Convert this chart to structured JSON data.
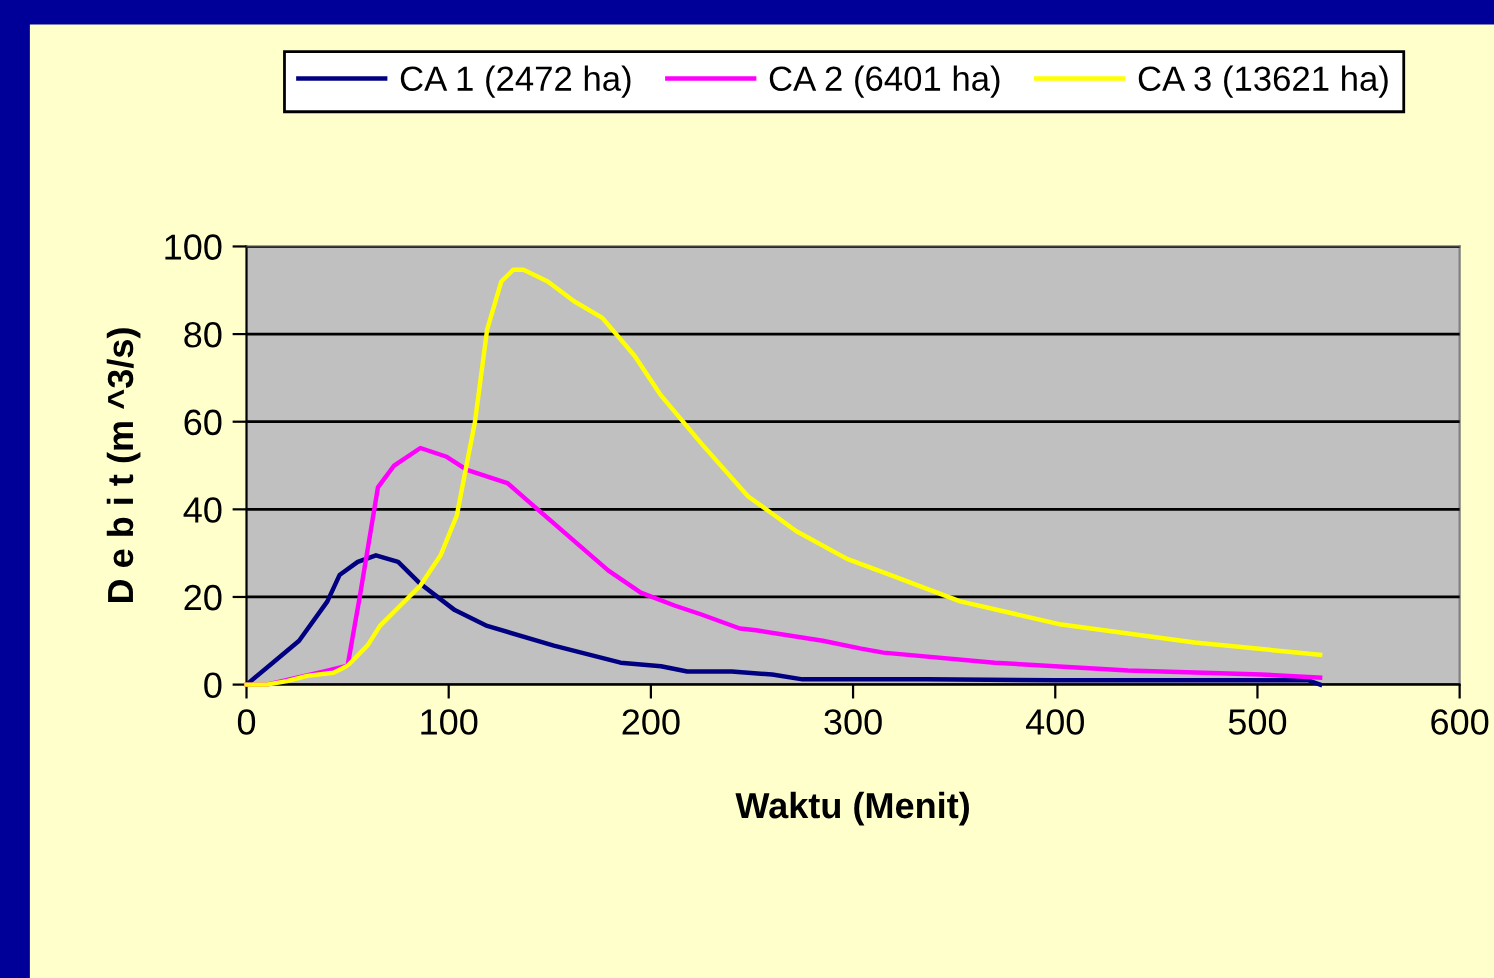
{
  "chart_data": {
    "type": "line",
    "xlabel": "Waktu (Menit)",
    "ylabel": "D e b i t (m ^3/s)",
    "xlim": [
      0,
      600
    ],
    "ylim": [
      0,
      100
    ],
    "xticks": [
      0,
      100,
      200,
      300,
      400,
      500,
      600
    ],
    "yticks": [
      0,
      20,
      40,
      60,
      80,
      100
    ],
    "grid": "y",
    "legend": "top",
    "marker": "none",
    "line_style": "solid",
    "series": [
      {
        "name": "CA 1 (2472 ha)",
        "color": "#000080",
        "x": [
          0,
          13,
          26,
          40,
          46,
          55,
          64,
          75,
          86,
          103,
          119,
          152,
          185,
          205,
          218,
          240,
          260,
          275,
          336,
          400,
          500,
          525,
          531
        ],
        "values": [
          0,
          5,
          10,
          19,
          25,
          28,
          29.5,
          28,
          23,
          17,
          13.4,
          8.9,
          5,
          4.2,
          3,
          3,
          2.3,
          1.2,
          1.2,
          1,
          1,
          1,
          0
        ]
      },
      {
        "name": "CA 2 (6401 ha)",
        "color": "#ff00ff",
        "x": [
          0,
          10,
          40,
          50,
          56,
          65,
          73,
          86,
          99,
          109,
          129,
          139,
          159,
          179,
          195,
          212,
          225,
          244,
          252,
          285,
          304,
          315,
          370,
          436,
          502,
          531
        ],
        "values": [
          0,
          0,
          3.2,
          4.3,
          20,
          45,
          50,
          54,
          52,
          49,
          46,
          42,
          34,
          26,
          21,
          18,
          16,
          12.8,
          12.4,
          10,
          8.2,
          7.3,
          5,
          3.2,
          2.3,
          1.6
        ]
      },
      {
        "name": "CA 3 (13621 ha)",
        "color": "#ffff00",
        "x": [
          0,
          10,
          20,
          30,
          43,
          50,
          60,
          66,
          76,
          86,
          96,
          104,
          113,
          119,
          126,
          132,
          137,
          149,
          162,
          176,
          192,
          205,
          225,
          248,
          272,
          297,
          315,
          353,
          403,
          469,
          531
        ],
        "values": [
          0,
          0,
          0.8,
          2,
          2.7,
          4.3,
          9,
          13.4,
          18,
          22.6,
          29.5,
          38.6,
          60,
          81,
          92,
          94.7,
          94.7,
          92,
          87.5,
          83.7,
          75,
          66,
          55,
          43,
          35,
          28.7,
          25.6,
          19,
          13.7,
          9.6,
          6.8
        ]
      }
    ]
  }
}
